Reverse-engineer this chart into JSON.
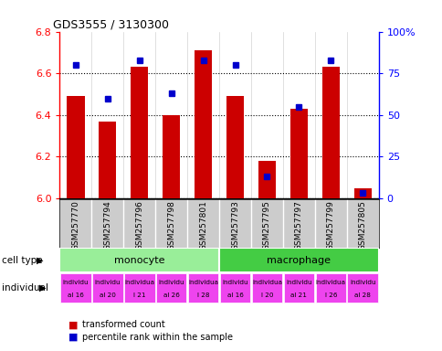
{
  "title": "GDS3555 / 3130300",
  "samples": [
    "GSM257770",
    "GSM257794",
    "GSM257796",
    "GSM257798",
    "GSM257801",
    "GSM257793",
    "GSM257795",
    "GSM257797",
    "GSM257799",
    "GSM257805"
  ],
  "transformed_counts": [
    6.49,
    6.37,
    6.63,
    6.4,
    6.71,
    6.49,
    6.18,
    6.43,
    6.63,
    6.05
  ],
  "percentile_ranks": [
    80,
    60,
    83,
    63,
    83,
    80,
    13,
    55,
    83,
    3
  ],
  "ylim_left": [
    6.0,
    6.8
  ],
  "ylim_right": [
    0,
    100
  ],
  "yticks_left": [
    6.0,
    6.2,
    6.4,
    6.6,
    6.8
  ],
  "yticks_right": [
    0,
    25,
    50,
    75,
    100
  ],
  "bar_color": "#CC0000",
  "dot_color": "#0000CC",
  "bar_bottom": 6.0,
  "legend_red": "transformed count",
  "legend_blue": "percentile rank within the sample",
  "cell_type_label": "cell type",
  "individual_label": "individual",
  "monocyte_color": "#99EE99",
  "macrophage_color": "#44CC44",
  "individual_color": "#EE44EE",
  "sample_bg_color": "#CCCCCC",
  "ind_labels_top": [
    "individu",
    "individu",
    "individua",
    "individu",
    "individua",
    "individu",
    "individua",
    "individu",
    "individua",
    "individu"
  ],
  "ind_labels_bot": [
    "al 16",
    "al 20",
    "l 21",
    "al 26",
    "l 28",
    "al 16",
    "l 20",
    "al 21",
    "l 26",
    "al 28"
  ]
}
